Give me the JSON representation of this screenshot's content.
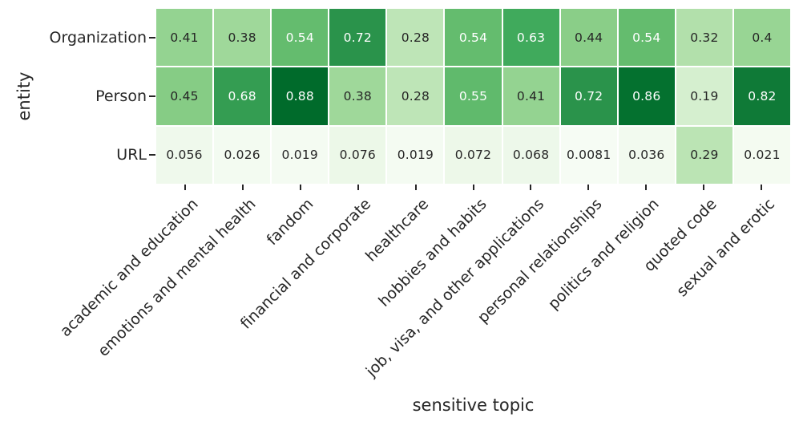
{
  "figure": {
    "background": "#ffffff",
    "text_color": "#262626"
  },
  "chart_data": {
    "type": "heatmap",
    "title": "",
    "xlabel": "sensitive topic",
    "ylabel": "entity",
    "x_categories": [
      "academic and education",
      "emotions and mental health",
      "fandom",
      "financial and corporate",
      "healthcare",
      "hobbies and habits",
      "job, visa, and other applications",
      "personal relationships",
      "politics and religion",
      "quoted code",
      "sexual and erotic"
    ],
    "y_categories": [
      "Organization",
      "Person",
      "URL"
    ],
    "rows": [
      {
        "entity": "Organization",
        "values": [
          0.41,
          0.38,
          0.54,
          0.72,
          0.28,
          0.54,
          0.63,
          0.44,
          0.54,
          0.32,
          0.4
        ],
        "labels": [
          "0.41",
          "0.38",
          "0.54",
          "0.72",
          "0.28",
          "0.54",
          "0.63",
          "0.44",
          "0.54",
          "0.32",
          "0.4"
        ]
      },
      {
        "entity": "Person",
        "values": [
          0.45,
          0.68,
          0.88,
          0.38,
          0.28,
          0.55,
          0.41,
          0.72,
          0.86,
          0.19,
          0.82
        ],
        "labels": [
          "0.45",
          "0.68",
          "0.88",
          "0.38",
          "0.28",
          "0.55",
          "0.41",
          "0.72",
          "0.86",
          "0.19",
          "0.82"
        ]
      },
      {
        "entity": "URL",
        "values": [
          0.056,
          0.026,
          0.019,
          0.076,
          0.019,
          0.072,
          0.068,
          0.0081,
          0.036,
          0.29,
          0.021
        ],
        "labels": [
          "0.056",
          "0.026",
          "0.019",
          "0.076",
          "0.019",
          "0.072",
          "0.068",
          "0.0081",
          "0.036",
          "0.29",
          "0.021"
        ]
      }
    ],
    "colormap": {
      "name": "Greens",
      "vmin": 0,
      "vmax": 1,
      "stops": [
        {
          "pos": 0.0,
          "color": "#f7fcf5"
        },
        {
          "pos": 0.125,
          "color": "#e5f5e0"
        },
        {
          "pos": 0.25,
          "color": "#c7e9c0"
        },
        {
          "pos": 0.375,
          "color": "#a1d99b"
        },
        {
          "pos": 0.5,
          "color": "#74c476"
        },
        {
          "pos": 0.625,
          "color": "#41ab5d"
        },
        {
          "pos": 0.75,
          "color": "#238b45"
        },
        {
          "pos": 0.875,
          "color": "#006d2c"
        },
        {
          "pos": 1.0,
          "color": "#00441b"
        }
      ]
    },
    "annotation_style": {
      "white_text_threshold": 0.5,
      "dark_text_color": "#262626",
      "light_text_color": "#ffffff"
    },
    "grid_line_color": "#ffffff",
    "tick_color": "#262626",
    "legend": "none"
  }
}
